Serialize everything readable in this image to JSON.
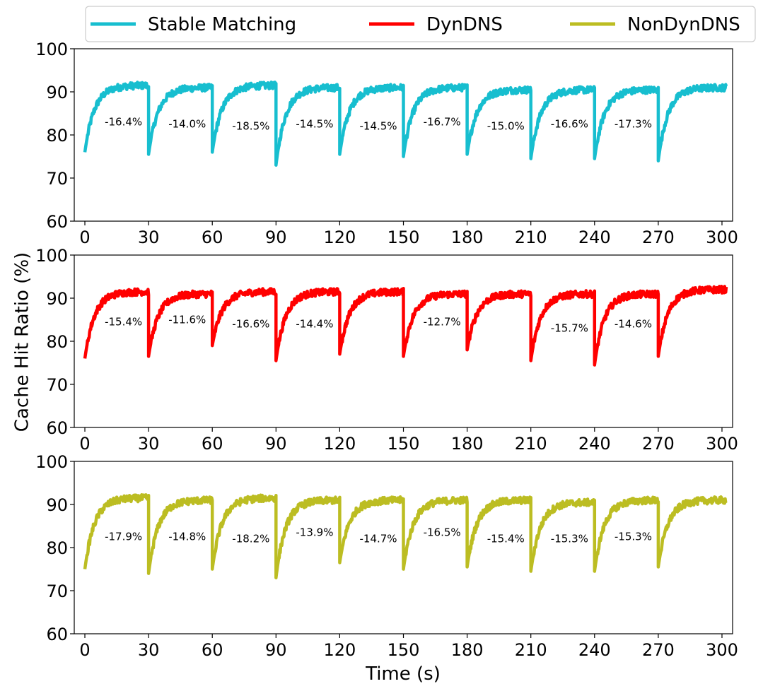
{
  "chart_data": {
    "type": "line",
    "ylabel": "Cache Hit Ratio (%)",
    "xlabel": "Time (s)",
    "xlim": [
      -5,
      305
    ],
    "ylim": [
      60,
      100
    ],
    "xticks": [
      0,
      30,
      60,
      90,
      120,
      150,
      180,
      210,
      240,
      270,
      300
    ],
    "xtick_labels": [
      "0",
      "30",
      "60",
      "90",
      "120",
      "150",
      "180",
      "210",
      "240",
      "270",
      "300"
    ],
    "yticks": [
      60,
      70,
      80,
      90,
      100
    ],
    "ytick_labels": [
      "60",
      "70",
      "80",
      "90",
      "100"
    ],
    "grid": false,
    "legend": {
      "placement": "top",
      "entries": [
        {
          "name": "Stable Matching",
          "color": "#17becf"
        },
        {
          "name": "DynDNS",
          "color": "#ff0000"
        },
        {
          "name": "NonDynDNS",
          "color": "#bcbd22"
        }
      ]
    },
    "panels": [
      {
        "series_name": "Stable Matching",
        "color": "#17becf",
        "cycle_start_values": [
          76,
          75.5,
          76,
          73,
          75.5,
          75,
          75.5,
          74.5,
          74.5,
          74
        ],
        "cycle_end_values": [
          91.5,
          91,
          91.5,
          91,
          91,
          91,
          90.5,
          90.5,
          90.5,
          91
        ],
        "annotations": [
          {
            "x": 19,
            "y": 82.2,
            "text": "-16.4%"
          },
          {
            "x": 49,
            "y": 81.7,
            "text": "-14.0%"
          },
          {
            "x": 79,
            "y": 81.2,
            "text": "-18.5%"
          },
          {
            "x": 109,
            "y": 81.7,
            "text": "-14.5%"
          },
          {
            "x": 139,
            "y": 81.2,
            "text": "-14.5%"
          },
          {
            "x": 169,
            "y": 82.2,
            "text": "-16.7%"
          },
          {
            "x": 199,
            "y": 81.2,
            "text": "-15.0%"
          },
          {
            "x": 229,
            "y": 81.7,
            "text": "-16.6%"
          },
          {
            "x": 259,
            "y": 81.7,
            "text": "-17.3%"
          }
        ]
      },
      {
        "series_name": "DynDNS",
        "color": "#ff0000",
        "cycle_start_values": [
          76,
          76.5,
          79,
          75.5,
          77,
          76.5,
          78,
          75.5,
          74.5,
          76.5
        ],
        "cycle_end_values": [
          91.5,
          91,
          91.5,
          91.5,
          91.5,
          91,
          91,
          91,
          91,
          92
        ],
        "annotations": [
          {
            "x": 19,
            "y": 83.7,
            "text": "-15.4%"
          },
          {
            "x": 49,
            "y": 84.2,
            "text": "-11.6%"
          },
          {
            "x": 79,
            "y": 83.2,
            "text": "-16.6%"
          },
          {
            "x": 109,
            "y": 83.2,
            "text": "-14.4%"
          },
          {
            "x": 169,
            "y": 83.7,
            "text": "-12.7%"
          },
          {
            "x": 229,
            "y": 82.2,
            "text": "-15.7%"
          },
          {
            "x": 259,
            "y": 83.2,
            "text": "-14.6%"
          }
        ]
      },
      {
        "series_name": "NonDynDNS",
        "color": "#bcbd22",
        "cycle_start_values": [
          75,
          74,
          75,
          73,
          76.5,
          75,
          75.5,
          74.5,
          74.5,
          75.5
        ],
        "cycle_end_values": [
          91.5,
          91,
          91.5,
          91,
          91,
          91,
          91,
          90.5,
          91,
          91
        ],
        "annotations": [
          {
            "x": 19,
            "y": 81.7,
            "text": "-17.9%"
          },
          {
            "x": 49,
            "y": 81.7,
            "text": "-14.8%"
          },
          {
            "x": 79,
            "y": 81.2,
            "text": "-18.2%"
          },
          {
            "x": 109,
            "y": 82.7,
            "text": "-13.9%"
          },
          {
            "x": 139,
            "y": 81.2,
            "text": "-14.7%"
          },
          {
            "x": 169,
            "y": 82.7,
            "text": "-16.5%"
          },
          {
            "x": 199,
            "y": 81.2,
            "text": "-15.4%"
          },
          {
            "x": 229,
            "y": 81.2,
            "text": "-15.3%"
          },
          {
            "x": 259,
            "y": 81.7,
            "text": "-15.3%"
          }
        ]
      }
    ]
  }
}
